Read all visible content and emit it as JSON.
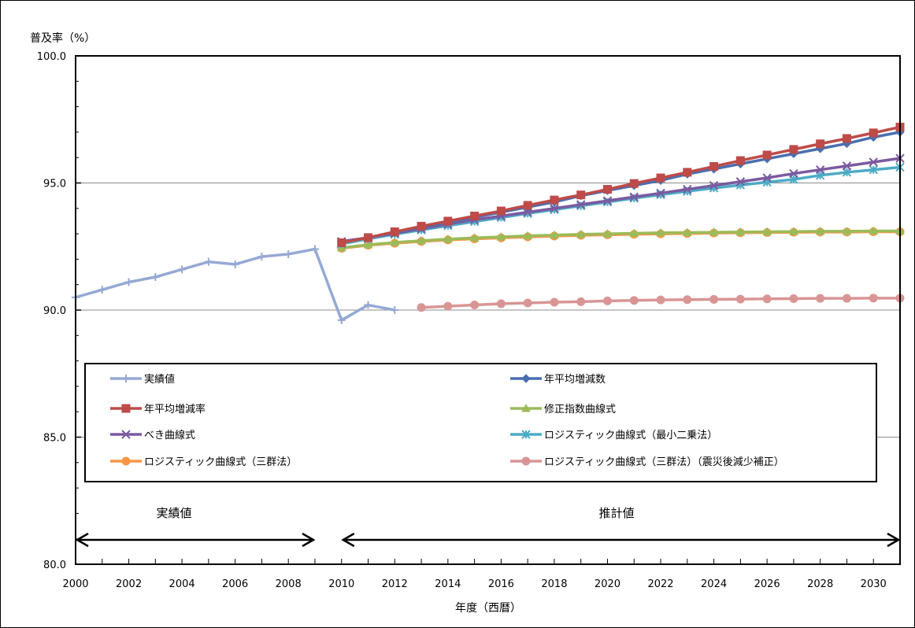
{
  "chart_data": {
    "type": "line",
    "ylabel": "普及率（%）",
    "xlabel": "年度（西暦）",
    "xlim": [
      2000,
      2031
    ],
    "ylim": [
      80,
      100
    ],
    "x_ticks": [
      "2000",
      "2002",
      "2004",
      "2006",
      "2008",
      "2010",
      "2012",
      "2014",
      "2016",
      "2018",
      "2020",
      "2022",
      "2024",
      "2026",
      "2028",
      "2030"
    ],
    "y_ticks": [
      "80.0",
      "85.0",
      "90.0",
      "95.0",
      "100.0"
    ],
    "gridlines_y": [
      85,
      90,
      95
    ],
    "legend_position": "bottom-inside",
    "regions": [
      {
        "label": "実績値",
        "from": 2000,
        "to": 2009
      },
      {
        "label": "推計値",
        "from": 2010,
        "to": 2031
      }
    ],
    "series": [
      {
        "name": "実績値",
        "color": "#95a9d4",
        "marker": "plus",
        "x": [
          2000,
          2001,
          2002,
          2003,
          2004,
          2005,
          2006,
          2007,
          2008,
          2009,
          2010,
          2011,
          2012
        ],
        "values": [
          90.5,
          90.8,
          91.1,
          91.3,
          91.6,
          91.9,
          91.8,
          92.1,
          92.2,
          92.4,
          89.6,
          90.2,
          90.0
        ]
      },
      {
        "name": "年平均増減数",
        "color": "#4a6fb0",
        "marker": "diamond",
        "x": [
          2010,
          2011,
          2012,
          2013,
          2014,
          2015,
          2016,
          2017,
          2018,
          2019,
          2020,
          2021,
          2022,
          2023,
          2024,
          2025,
          2026,
          2027,
          2028,
          2029,
          2030,
          2031
        ],
        "values": [
          92.65,
          92.85,
          93.05,
          93.25,
          93.45,
          93.65,
          93.85,
          94.05,
          94.25,
          94.5,
          94.7,
          94.9,
          95.1,
          95.35,
          95.55,
          95.75,
          95.95,
          96.15,
          96.35,
          96.55,
          96.8,
          97.0
        ]
      },
      {
        "name": "年平均増減率",
        "color": "#be4b48",
        "marker": "square",
        "x": [
          2010,
          2011,
          2012,
          2013,
          2014,
          2015,
          2016,
          2017,
          2018,
          2019,
          2020,
          2021,
          2022,
          2023,
          2024,
          2025,
          2026,
          2027,
          2028,
          2029,
          2030,
          2031
        ],
        "values": [
          92.65,
          92.85,
          93.08,
          93.3,
          93.5,
          93.7,
          93.9,
          94.12,
          94.33,
          94.53,
          94.75,
          94.98,
          95.2,
          95.42,
          95.65,
          95.88,
          96.1,
          96.32,
          96.54,
          96.75,
          96.97,
          97.2
        ]
      },
      {
        "name": "修正指数曲線式",
        "color": "#9bbb59",
        "marker": "triangle",
        "x": [
          2010,
          2011,
          2012,
          2013,
          2014,
          2015,
          2016,
          2017,
          2018,
          2019,
          2020,
          2021,
          2022,
          2023,
          2024,
          2025,
          2026,
          2027,
          2028,
          2029,
          2030,
          2031
        ],
        "values": [
          92.45,
          92.57,
          92.66,
          92.73,
          92.79,
          92.84,
          92.88,
          92.92,
          92.95,
          92.98,
          93.0,
          93.02,
          93.04,
          93.05,
          93.06,
          93.07,
          93.08,
          93.09,
          93.1,
          93.1,
          93.11,
          93.11
        ]
      },
      {
        "name": "べき曲線式",
        "color": "#7b5aa0",
        "marker": "x",
        "x": [
          2010,
          2011,
          2012,
          2013,
          2014,
          2015,
          2016,
          2017,
          2018,
          2019,
          2020,
          2021,
          2022,
          2023,
          2024,
          2025,
          2026,
          2027,
          2028,
          2029,
          2030,
          2031
        ],
        "values": [
          92.7,
          92.85,
          93.02,
          93.2,
          93.38,
          93.55,
          93.7,
          93.85,
          94.0,
          94.15,
          94.3,
          94.45,
          94.6,
          94.75,
          94.9,
          95.05,
          95.2,
          95.37,
          95.52,
          95.67,
          95.82,
          95.97
        ]
      },
      {
        "name": "ロジスティック曲線式（最小二乗法）",
        "color": "#4bacc6",
        "marker": "star",
        "x": [
          2010,
          2011,
          2012,
          2013,
          2014,
          2015,
          2016,
          2017,
          2018,
          2019,
          2020,
          2021,
          2022,
          2023,
          2024,
          2025,
          2026,
          2027,
          2028,
          2029,
          2030,
          2031
        ],
        "values": [
          92.6,
          92.8,
          92.98,
          93.15,
          93.32,
          93.48,
          93.64,
          93.8,
          93.95,
          94.1,
          94.25,
          94.4,
          94.54,
          94.67,
          94.8,
          94.92,
          95.03,
          95.14,
          95.3,
          95.42,
          95.52,
          95.62
        ]
      },
      {
        "name": "ロジスティック曲線式（三群法）",
        "color": "#f79646",
        "marker": "circle",
        "x": [
          2010,
          2011,
          2012,
          2013,
          2014,
          2015,
          2016,
          2017,
          2018,
          2019,
          2020,
          2021,
          2022,
          2023,
          2024,
          2025,
          2026,
          2027,
          2028,
          2029,
          2030,
          2031
        ],
        "values": [
          92.43,
          92.55,
          92.63,
          92.7,
          92.76,
          92.8,
          92.84,
          92.88,
          92.91,
          92.94,
          92.96,
          92.98,
          93.0,
          93.01,
          93.03,
          93.04,
          93.05,
          93.06,
          93.07,
          93.07,
          93.08,
          93.08
        ]
      },
      {
        "name": "ロジスティック曲線式（三群法）（震災後減少補正）",
        "color": "#d99594",
        "marker": "circle",
        "x": [
          2013,
          2014,
          2015,
          2016,
          2017,
          2018,
          2019,
          2020,
          2021,
          2022,
          2023,
          2024,
          2025,
          2026,
          2027,
          2028,
          2029,
          2030,
          2031
        ],
        "values": [
          90.1,
          90.15,
          90.2,
          90.25,
          90.28,
          90.31,
          90.33,
          90.36,
          90.38,
          90.4,
          90.41,
          90.42,
          90.43,
          90.44,
          90.45,
          90.46,
          90.46,
          90.47,
          90.47
        ]
      }
    ]
  }
}
